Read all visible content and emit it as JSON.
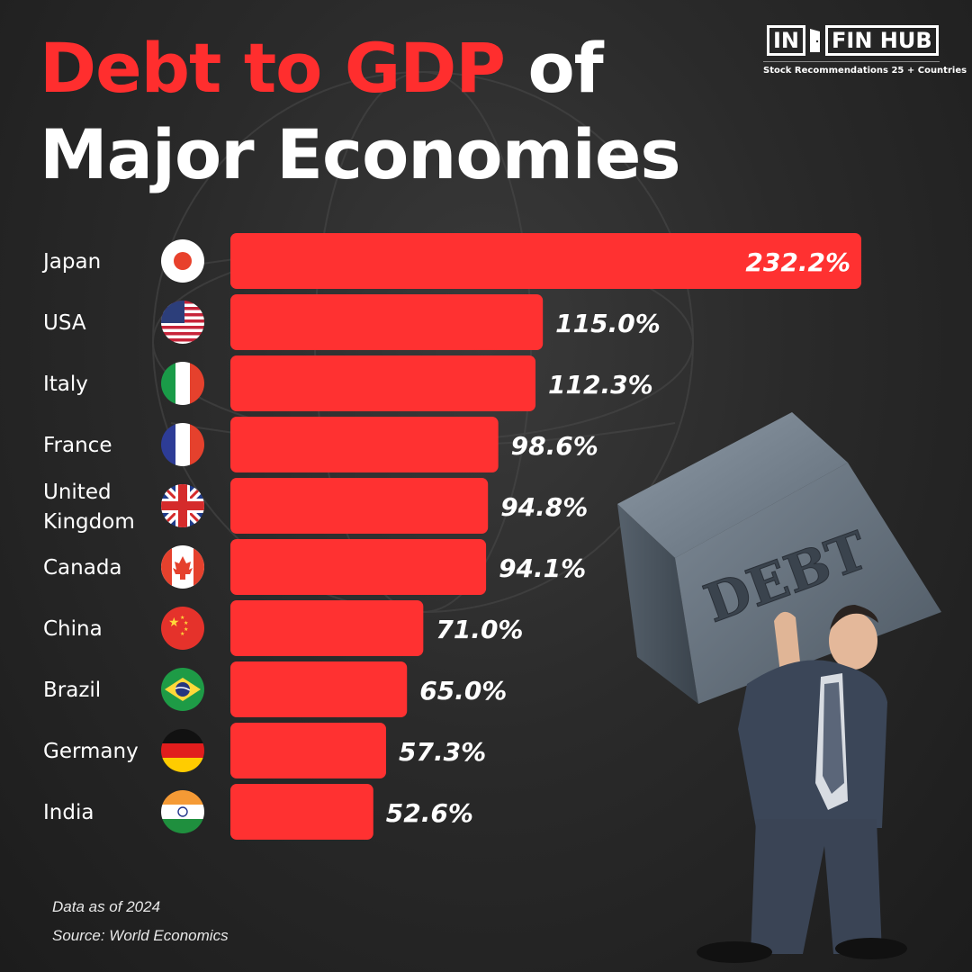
{
  "title": {
    "part1": "Debt to GDP",
    "part2": " of",
    "line2": "Major Economies"
  },
  "logo": {
    "left": "IN",
    "right": "FIN HUB",
    "tagline": "Stock Recommendations 25 + Countries"
  },
  "colors": {
    "bar": "#ff3131",
    "title_accent": "#ff2e2e",
    "background": "#2b2b2b"
  },
  "chart_data": {
    "type": "bar",
    "orientation": "horizontal",
    "categories": [
      "Japan",
      "USA",
      "Italy",
      "France",
      "United Kingdom",
      "Canada",
      "China",
      "Brazil",
      "Germany",
      "India"
    ],
    "category_lines": [
      [
        "Japan"
      ],
      [
        "USA"
      ],
      [
        "Italy"
      ],
      [
        "France"
      ],
      [
        "United",
        "Kingdom"
      ],
      [
        "Canada"
      ],
      [
        "China"
      ],
      [
        "Brazil"
      ],
      [
        "Germany"
      ],
      [
        "India"
      ]
    ],
    "values": [
      232.2,
      115.0,
      112.3,
      98.6,
      94.8,
      94.1,
      71.0,
      65.0,
      57.3,
      52.6
    ],
    "labels": [
      "232.2%",
      "115.0%",
      "112.3%",
      "98.6%",
      "94.8%",
      "94.1%",
      "71.0%",
      "65.0%",
      "57.3%",
      "52.6%"
    ],
    "flags": [
      "japan-flag-icon",
      "usa-flag-icon",
      "italy-flag-icon",
      "france-flag-icon",
      "uk-flag-icon",
      "canada-flag-icon",
      "china-flag-icon",
      "brazil-flag-icon",
      "germany-flag-icon",
      "india-flag-icon"
    ],
    "xlim": [
      0,
      232.2
    ],
    "grid": false,
    "legend": "none"
  },
  "illustration": {
    "block_text": "DEBT"
  },
  "footer": {
    "date": "Data as of 2024",
    "source": "Source: World Economics"
  }
}
